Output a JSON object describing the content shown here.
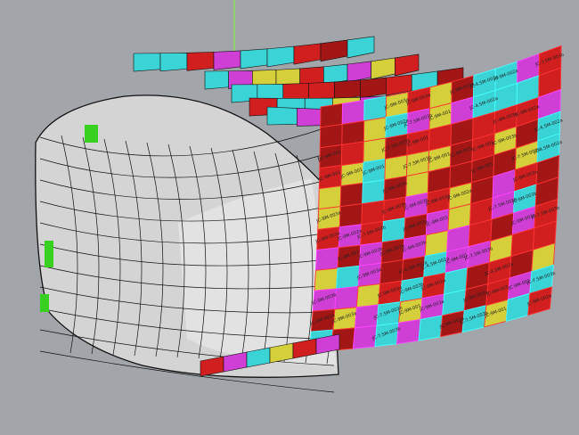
{
  "viewport": {
    "background": "#a2a6ab",
    "shell_color": "#d4d4d4",
    "edge_color": "#111111",
    "axis_color": "#7cff3a"
  },
  "panel_colors": {
    "red": "#d11e1e",
    "dark_red": "#a31616",
    "magenta": "#cf3fd6",
    "cyan": "#3ad3d6",
    "yellow": "#d4cf3a",
    "green": "#39d11f"
  },
  "panel_labels": [
    "JC-9M-001",
    "JC-9M-002a",
    "JC-9M-003a",
    "JC-9M-003b",
    "JC-7.5M-003b",
    "JC-4.5M-002a"
  ]
}
